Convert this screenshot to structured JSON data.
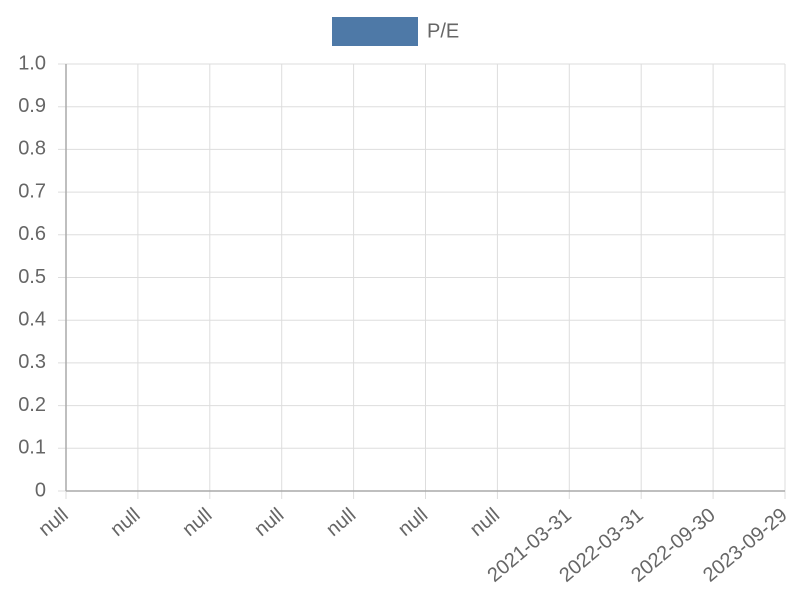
{
  "chart_data": {
    "type": "line",
    "categories": [
      "null",
      "null",
      "null",
      "null",
      "null",
      "null",
      "null",
      "2021-03-31",
      "2022-03-31",
      "2022-09-30",
      "2023-09-29"
    ],
    "series": [
      {
        "name": "P/E",
        "color": "#4e79a7",
        "values": [
          null,
          null,
          null,
          null,
          null,
          null,
          null,
          null,
          null,
          null,
          null
        ]
      }
    ],
    "ylim": [
      0,
      1
    ],
    "yticks": [
      0,
      0.1,
      0.2,
      0.3,
      0.4,
      0.5,
      0.6,
      0.7,
      0.8,
      0.9,
      {
        "value": 1,
        "label": "1.0"
      }
    ],
    "grid": true,
    "legend": "top"
  }
}
